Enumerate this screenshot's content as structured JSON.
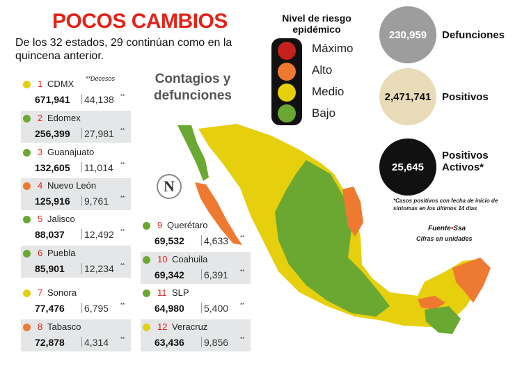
{
  "header": {
    "title": "POCOS CAMBIOS",
    "subtitle": "De los 32 estados, 29 continúan como en la quincena anterior."
  },
  "deaths_note": "**Decesos",
  "section_title": "Contagios y defunciones",
  "logo": "N",
  "states": [
    {
      "rank": "1",
      "name": "CDMX",
      "cases": "671,941",
      "deaths": "44,138",
      "mark": "**",
      "color": "#e6cf0c"
    },
    {
      "rank": "2",
      "name": "Edomex",
      "cases": "256,399",
      "deaths": "27,981",
      "mark": "**",
      "color": "#6aa832"
    },
    {
      "rank": "3",
      "name": "Guanajuato",
      "cases": "132,605",
      "deaths": "11,014",
      "mark": "**",
      "color": "#6aa832"
    },
    {
      "rank": "4",
      "name": "Nuevo León",
      "cases": "125,916",
      "deaths": "9,761",
      "mark": "**",
      "color": "#ee7a31"
    },
    {
      "rank": "5",
      "name": "Jalisco",
      "cases": "88,037",
      "deaths": "12,492",
      "mark": "**",
      "color": "#6aa832"
    },
    {
      "rank": "6",
      "name": "Puebla",
      "cases": "85,901",
      "deaths": "12,234",
      "mark": "**",
      "color": "#6aa832"
    },
    {
      "rank": "7",
      "name": "Sonora",
      "cases": "77,476",
      "deaths": "6,795",
      "mark": "**",
      "color": "#e6cf0c"
    },
    {
      "rank": "8",
      "name": "Tabasco",
      "cases": "72,878",
      "deaths": "4,314",
      "mark": "**",
      "color": "#ee7a31"
    },
    {
      "rank": "9",
      "name": "Querétaro",
      "cases": "69,532",
      "deaths": "4,633",
      "mark": "**",
      "color": "#6aa832"
    },
    {
      "rank": "10",
      "name": "Coahuila",
      "cases": "69,342",
      "deaths": "6,391",
      "mark": "**",
      "color": "#6aa832"
    },
    {
      "rank": "11",
      "name": "SLP",
      "cases": "64,980",
      "deaths": "5,400",
      "mark": "**",
      "color": "#6aa832"
    },
    {
      "rank": "12",
      "name": "Veracruz",
      "cases": "63,436",
      "deaths": "9,856",
      "mark": "**",
      "color": "#e6cf0c"
    }
  ],
  "legend": {
    "title": "Nivel de riesgo epidémico",
    "levels": [
      {
        "label": "Máximo",
        "color": "#c4201d"
      },
      {
        "label": "Alto",
        "color": "#ee7a31"
      },
      {
        "label": "Medio",
        "color": "#e6cf0c"
      },
      {
        "label": "Bajo",
        "color": "#6aa832"
      }
    ]
  },
  "totals": [
    {
      "value": "230,959",
      "label": "Defunciones",
      "color": "#9d9d9d",
      "text_color": "#ffffff"
    },
    {
      "value": "2,471,741",
      "label": "Positivos",
      "color": "#e8dcb8",
      "text_color": "#111111"
    },
    {
      "value": "25,645",
      "label": "Positivos Activos*",
      "color": "#111111",
      "text_color": "#ffffff"
    }
  ],
  "footnote": "*Casos positivos con fecha de inicio de síntomas en los últimos 14 días",
  "source": {
    "label": "Fuente",
    "bullet": "•",
    "name": "Ssa"
  },
  "units_note": "Cifras en unidades"
}
